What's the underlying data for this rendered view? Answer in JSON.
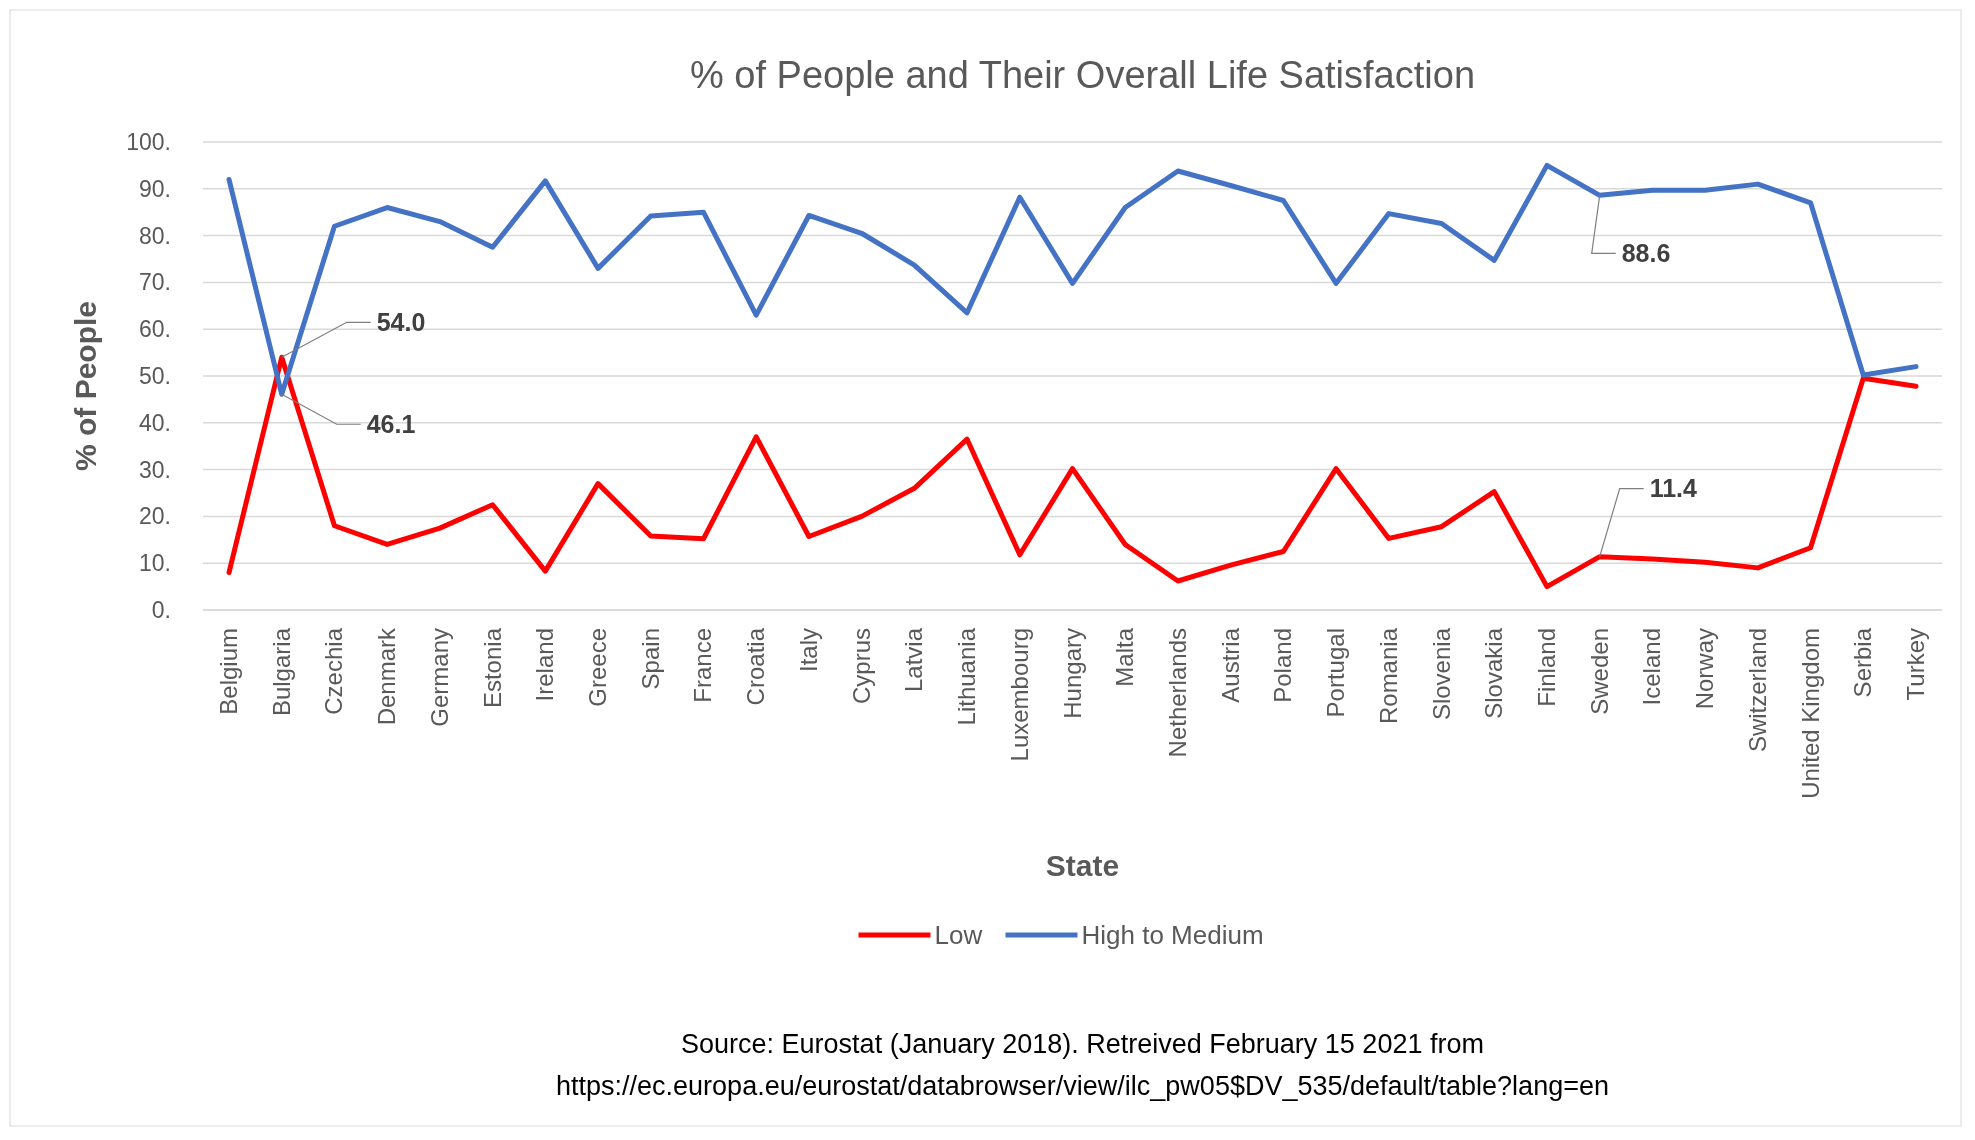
{
  "chart_data": {
    "type": "line",
    "title": "% of People and Their Overall Life Satisfaction",
    "xlabel": "State",
    "ylabel": "% of People",
    "categories": [
      "Belgium",
      "Bulgaria",
      "Czechia",
      "Denmark",
      "Germany",
      "Estonia",
      "Ireland",
      "Greece",
      "Spain",
      "France",
      "Croatia",
      "Italy",
      "Cyprus",
      "Latvia",
      "Lithuania",
      "Luxembourg",
      "Hungary",
      "Malta",
      "Netherlands",
      "Austria",
      "Poland",
      "Portugal",
      "Romania",
      "Slovenia",
      "Slovakia",
      "Finland",
      "Sweden",
      "Iceland",
      "Norway",
      "Switzerland",
      "United Kingdom",
      "Serbia",
      "Turkey"
    ],
    "series": [
      {
        "name": "Low",
        "color": "#ff0000",
        "values": [
          8,
          54.0,
          18,
          14,
          17.5,
          22.5,
          8.3,
          27,
          15.8,
          15.2,
          37,
          15.7,
          20,
          26,
          36.5,
          11.8,
          30.2,
          14,
          6.2,
          9.6,
          12.5,
          30.2,
          15.3,
          17.8,
          25.3,
          5,
          11.4,
          10.9,
          10.2,
          9,
          13.3,
          49.5,
          47.8
        ]
      },
      {
        "name": "High to Medium",
        "color": "#4472c4",
        "values": [
          92,
          46.1,
          82,
          86,
          83,
          77.5,
          91.7,
          73,
          84.2,
          85,
          63,
          84.3,
          80.5,
          73.7,
          63.5,
          88.2,
          69.8,
          86,
          93.8,
          90.7,
          87.5,
          69.8,
          84.7,
          82.6,
          74.7,
          95,
          88.6,
          89.7,
          89.7,
          91,
          87,
          50.2,
          52
        ]
      }
    ],
    "ylim": [
      0,
      100
    ],
    "yticks": [
      {
        "value": 0,
        "label": "0."
      },
      {
        "value": 10,
        "label": "10."
      },
      {
        "value": 20,
        "label": "20."
      },
      {
        "value": 30,
        "label": "30."
      },
      {
        "value": 40,
        "label": "40."
      },
      {
        "value": 50,
        "label": "50."
      },
      {
        "value": 60,
        "label": "60."
      },
      {
        "value": 70,
        "label": "70."
      },
      {
        "value": 80,
        "label": "80."
      },
      {
        "value": 90,
        "label": "90."
      },
      {
        "value": 100,
        "label": "100."
      }
    ],
    "grid": "y",
    "legend": "bottom",
    "marker": "none",
    "line_style": "solid",
    "annotations": [
      {
        "text": "54.0",
        "x": "Bulgaria",
        "y": 54.0
      },
      {
        "text": "46.1",
        "x": "Bulgaria",
        "y": 46.1
      },
      {
        "text": "88.6",
        "x": "Sweden",
        "y": 88.6
      },
      {
        "text": "11.4",
        "x": "Sweden",
        "y": 11.4
      },
      "Source: Eurostat (January 2018). Retreived February 15 2021 from",
      "https://ec.europa.eu/eurostat/databrowser/view/ilc_pw05$DV_535/default/table?lang=en"
    ]
  }
}
